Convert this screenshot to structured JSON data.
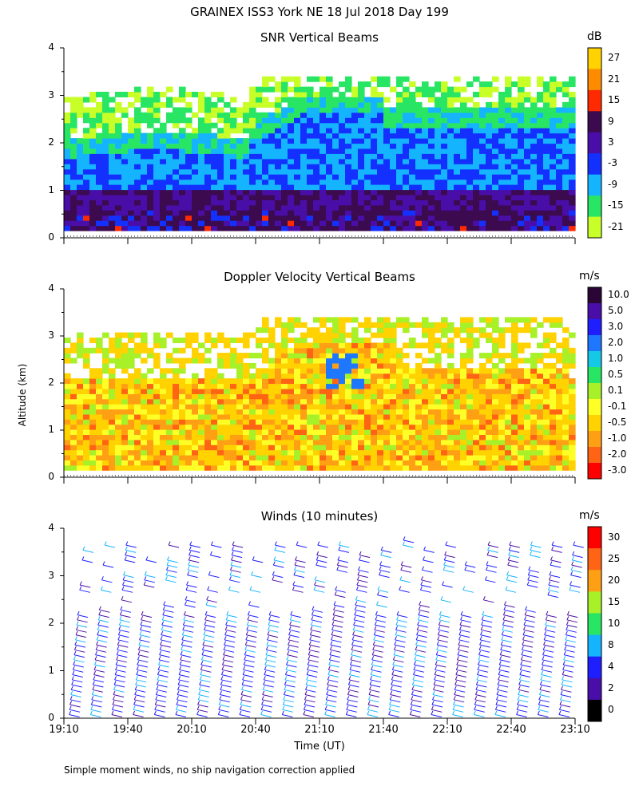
{
  "title": "GRAINEX ISS3 York NE  18 Jul 2018 Day 199",
  "footnote": "Simple moment winds, no ship navigation correction applied",
  "y_axis_label": "Altitude (km)",
  "x_axis_label": "Time (UT)",
  "x_tick_labels": [
    "19:10",
    "19:40",
    "20:10",
    "20:40",
    "21:10",
    "21:40",
    "22:10",
    "22:40",
    "23:10"
  ],
  "y_tick_labels": [
    "0",
    "1",
    "2",
    "3",
    "4"
  ],
  "chart_data": [
    {
      "type": "heatmap",
      "title": "SNR Vertical Beams",
      "unit": "dB",
      "xlabel": "Time (UT)",
      "ylabel": "Altitude (km)",
      "ylim": [
        0,
        4
      ],
      "xlim": [
        "19:10",
        "23:10"
      ],
      "colorbar_labels": [
        "27",
        "21",
        "15",
        "9",
        "3",
        "-3",
        "-9",
        "-15",
        "-21"
      ],
      "colorbar_colors": [
        "#ffd200",
        "#ff8c00",
        "#ff2a00",
        "#3c0a4e",
        "#4a0ea8",
        "#1430ff",
        "#14b4ff",
        "#28e664",
        "#c8ff28"
      ]
    },
    {
      "type": "heatmap",
      "title": "Doppler Velocity Vertical Beams",
      "unit": "m/s",
      "xlabel": "Time (UT)",
      "ylabel": "Altitude (km)",
      "ylim": [
        0,
        4
      ],
      "xlim": [
        "19:10",
        "23:10"
      ],
      "colorbar_labels": [
        "10.0",
        "5.0",
        "3.0",
        "2.0",
        "1.0",
        "0.5",
        "0.1",
        "-0.1",
        "-0.5",
        "-1.0",
        "-2.0",
        "-3.0"
      ],
      "colorbar_colors": [
        "#2a0636",
        "#4a0ea8",
        "#1e1eff",
        "#1e78ff",
        "#14c8e6",
        "#28e664",
        "#a8f028",
        "#ffff28",
        "#ffd200",
        "#ffa014",
        "#ff6414",
        "#ff0000"
      ]
    },
    {
      "type": "heatmap",
      "title": "Winds (10 minutes)",
      "unit": "m/s",
      "xlabel": "Time (UT)",
      "ylabel": "Altitude (km)",
      "ylim": [
        0,
        4
      ],
      "xlim": [
        "19:10",
        "23:10"
      ],
      "colorbar_labels": [
        "30",
        "25",
        "20",
        "15",
        "10",
        "8",
        "4",
        "2",
        "0"
      ],
      "colorbar_colors": [
        "#ff0000",
        "#ff6414",
        "#ffa014",
        "#a8f028",
        "#28e664",
        "#14b4ff",
        "#1e1eff",
        "#4a0ea8",
        "#000000"
      ]
    }
  ]
}
